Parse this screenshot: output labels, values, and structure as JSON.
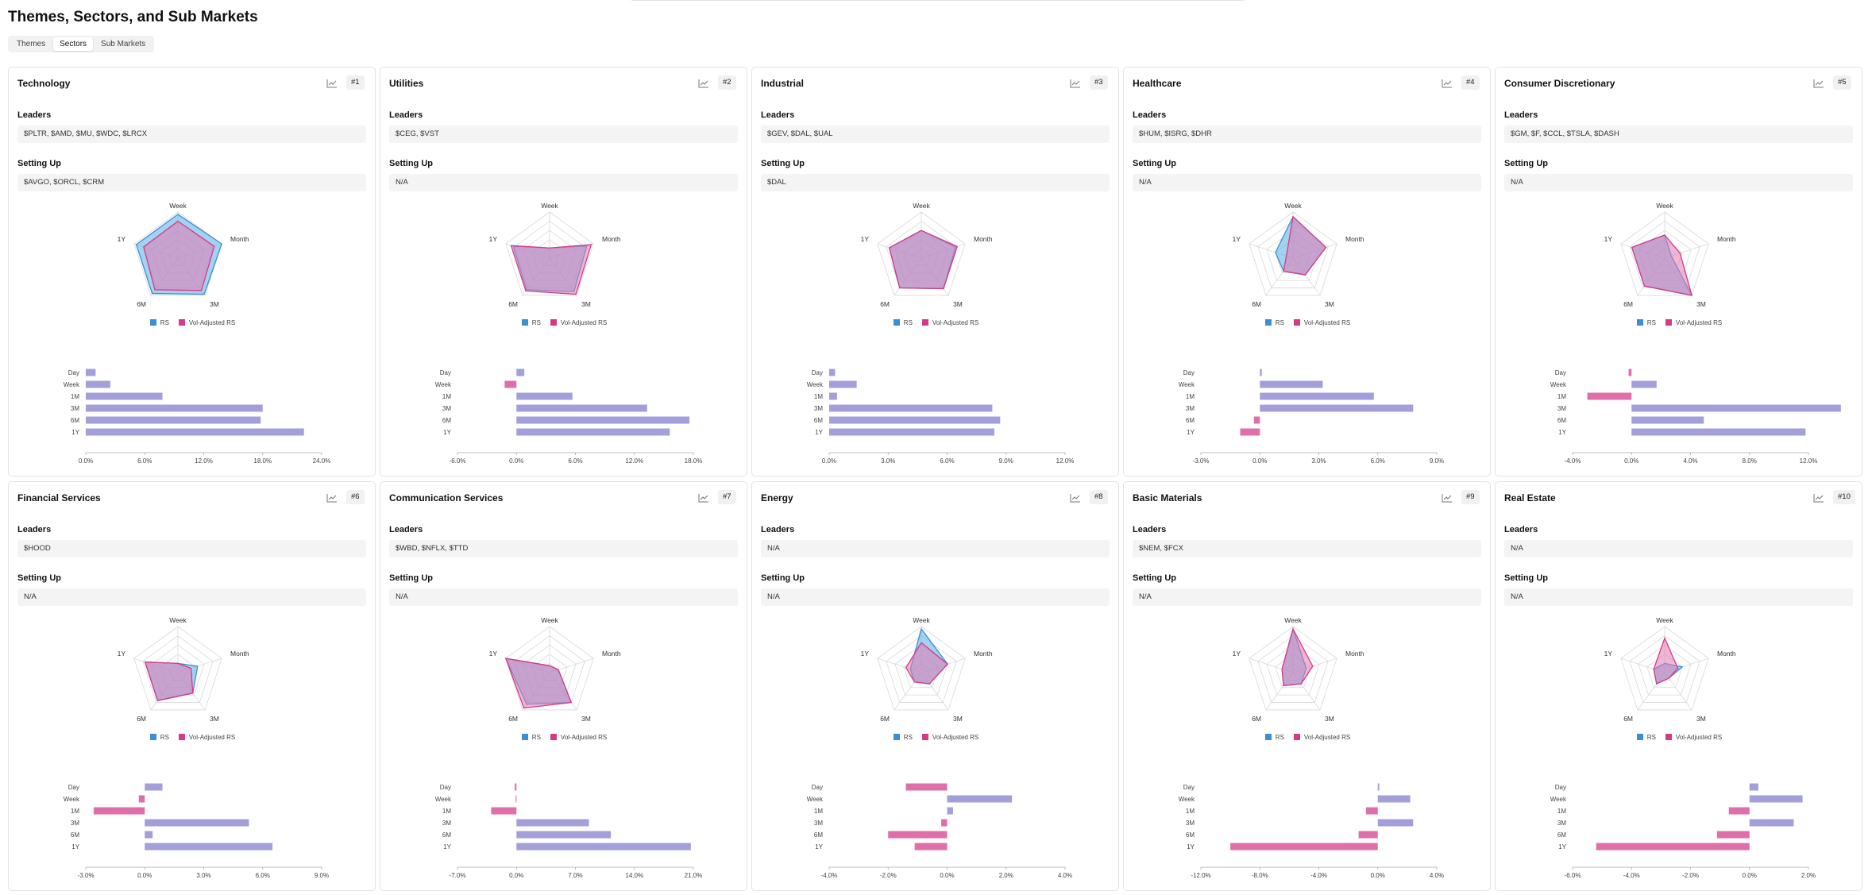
{
  "page": {
    "title": "Themes, Sectors, and Sub Markets",
    "tabs": [
      {
        "label": "Themes",
        "active": false
      },
      {
        "label": "Sectors",
        "active": true
      },
      {
        "label": "Sub Markets",
        "active": false
      }
    ]
  },
  "labels": {
    "leaders": "Leaders",
    "setting_up": "Setting Up"
  },
  "legend": {
    "rs": "RS",
    "vol": "Vol-Adjusted RS"
  },
  "colors": {
    "rs_stroke": "#3b8fd6",
    "rs_fill": "#58aee6",
    "vol_stroke": "#d63a86",
    "vol_fill": "#e57ab0",
    "bar_pos": "#a39fdb",
    "bar_neg": "#e06ea8"
  },
  "icons": {
    "chart": "line-chart-icon"
  },
  "radar_axes": [
    "Week",
    "Month",
    "3M",
    "6M",
    "1Y"
  ],
  "bar_categories": [
    "Day",
    "Week",
    "1M",
    "3M",
    "6M",
    "1Y"
  ],
  "sectors": [
    {
      "name": "Technology",
      "rank": "#1",
      "leaders": "$PLTR, $AMD, $MU, $WDC, $LRCX",
      "setting_up": "$AVGO, $ORCL, $CRM",
      "radar": {
        "rs": [
          0.95,
          1.0,
          0.97,
          0.95,
          0.95
        ],
        "vol": [
          0.8,
          0.83,
          0.87,
          0.85,
          0.78
        ]
      },
      "bars": {
        "values": [
          1.0,
          2.5,
          7.8,
          18.0,
          17.8,
          22.2
        ],
        "ticks": [
          0,
          6,
          12,
          18,
          24
        ],
        "unit": ".0%"
      }
    },
    {
      "name": "Utilities",
      "rank": "#2",
      "leaders": "$CEG, $VST",
      "setting_up": "N/A",
      "radar": {
        "rs": [
          0.22,
          0.85,
          0.9,
          0.85,
          0.83
        ],
        "vol": [
          0.22,
          0.95,
          0.97,
          0.88,
          0.88
        ]
      },
      "bars": {
        "values": [
          0.8,
          -1.2,
          5.7,
          13.3,
          17.6,
          15.6
        ],
        "ticks": [
          -6,
          0,
          6,
          12,
          18
        ],
        "unit": ".0%"
      }
    },
    {
      "name": "Industrial",
      "rank": "#3",
      "leaders": "$GEV, $DAL, $UAL",
      "setting_up": "$DAL",
      "radar": {
        "rs": [
          0.6,
          0.78,
          0.82,
          0.8,
          0.73
        ],
        "vol": [
          0.6,
          0.82,
          0.82,
          0.8,
          0.73
        ]
      },
      "bars": {
        "values": [
          0.3,
          1.4,
          0.4,
          8.3,
          8.7,
          8.4
        ],
        "ticks": [
          0,
          3,
          6,
          9,
          12
        ],
        "unit": ".0%"
      }
    },
    {
      "name": "Healthcare",
      "rank": "#4",
      "leaders": "$HUM, $ISRG, $DHR",
      "setting_up": "N/A",
      "radar": {
        "rs": [
          0.9,
          0.75,
          0.45,
          0.35,
          0.4
        ],
        "vol": [
          0.9,
          0.75,
          0.45,
          0.35,
          0.15
        ]
      },
      "bars": {
        "values": [
          0.1,
          3.2,
          5.8,
          7.8,
          -0.3,
          -1.0
        ],
        "ticks": [
          -3,
          0,
          3,
          6,
          9
        ],
        "unit": ".0%"
      }
    },
    {
      "name": "Consumer Discretionary",
      "rank": "#5",
      "leaders": "$GM, $F, $CCL, $TSLA, $DASH",
      "setting_up": "N/A",
      "radar": {
        "rs": [
          0.5,
          0.15,
          1.0,
          0.75,
          0.75
        ],
        "vol": [
          0.5,
          0.35,
          1.0,
          0.75,
          0.75
        ]
      },
      "bars": {
        "values": [
          -0.2,
          1.7,
          -3.0,
          14.2,
          4.9,
          11.8
        ],
        "ticks": [
          -4,
          0,
          4,
          8,
          12
        ],
        "unit": ".0%"
      }
    },
    {
      "name": "Financial Services",
      "rank": "#6",
      "leaders": "$HOOD",
      "setting_up": "N/A",
      "radar": {
        "rs": [
          0.2,
          0.45,
          0.55,
          0.75,
          0.75
        ],
        "vol": [
          0.2,
          0.3,
          0.55,
          0.75,
          0.75
        ]
      },
      "bars": {
        "values": [
          0.9,
          -0.3,
          -2.6,
          5.3,
          0.4,
          6.5
        ],
        "ticks": [
          -3,
          0,
          3,
          6,
          9
        ],
        "unit": ".0%"
      }
    },
    {
      "name": "Communication Services",
      "rank": "#7",
      "leaders": "$WBD, $NFLX, $TTD",
      "setting_up": "N/A",
      "radar": {
        "rs": [
          0.15,
          0.2,
          0.8,
          0.85,
          1.0
        ],
        "vol": [
          0.15,
          0.2,
          0.8,
          0.95,
          1.0
        ]
      },
      "bars": {
        "values": [
          -0.2,
          -0.1,
          -3.0,
          8.6,
          11.2,
          20.7
        ],
        "ticks": [
          -7,
          0,
          7,
          14,
          21
        ],
        "unit": ".0%"
      }
    },
    {
      "name": "Energy",
      "rank": "#8",
      "leaders": "N/A",
      "setting_up": "N/A",
      "radar": {
        "rs": [
          0.95,
          0.6,
          0.3,
          0.25,
          0.25
        ],
        "vol": [
          0.65,
          0.6,
          0.3,
          0.25,
          0.35
        ]
      },
      "bars": {
        "values": [
          -1.4,
          2.2,
          0.2,
          -0.2,
          -2.0,
          -1.1
        ],
        "ticks": [
          -4,
          -2,
          0,
          2,
          4
        ],
        "unit": ".1%"
      }
    },
    {
      "name": "Basic Materials",
      "rank": "#9",
      "leaders": "$NEM, $FCX",
      "setting_up": "N/A",
      "radar": {
        "rs": [
          0.95,
          0.3,
          0.3,
          0.35,
          0.25
        ],
        "vol": [
          0.95,
          0.45,
          0.3,
          0.35,
          0.25
        ]
      },
      "bars": {
        "values": [
          0.1,
          2.2,
          -0.8,
          2.4,
          -1.3,
          -10.0
        ],
        "ticks": [
          -12,
          -8,
          -4,
          0,
          4
        ],
        "unit": ".1%"
      }
    },
    {
      "name": "Real Estate",
      "rank": "#10",
      "leaders": "N/A",
      "setting_up": "N/A",
      "radar": {
        "rs": [
          0.2,
          0.4,
          0.15,
          0.3,
          0.25
        ],
        "vol": [
          0.75,
          0.3,
          0.15,
          0.3,
          0.25
        ]
      },
      "bars": {
        "values": [
          0.3,
          1.8,
          -0.7,
          1.5,
          -1.1,
          -5.2
        ],
        "ticks": [
          -6,
          -4,
          -2,
          0,
          2
        ],
        "unit": ".1%"
      }
    }
  ]
}
